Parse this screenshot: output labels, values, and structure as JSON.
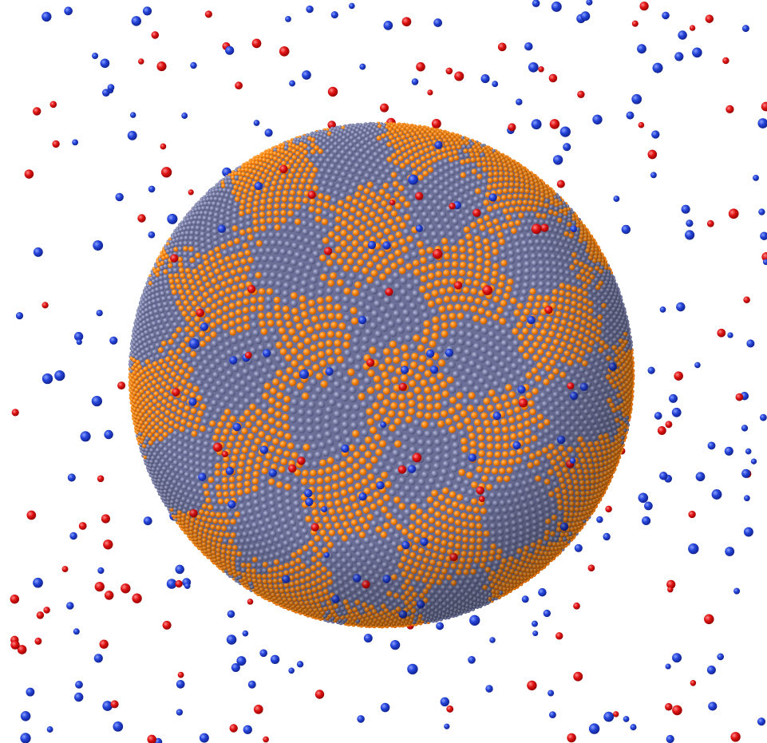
{
  "scene": {
    "description_kind": "molecular-dynamics-render",
    "background_color": "#ffffff",
    "colors": {
      "sphere_atom_a": "#ff8000",
      "sphere_atom_b": "#7a7fa8",
      "loose_atom_red": "#e01010",
      "loose_atom_blue": "#2040d0"
    },
    "sphere_pattern_seed": 7,
    "loose_particle_seed": 42,
    "loose_particle_count": 420,
    "red_fraction": 0.38
  }
}
